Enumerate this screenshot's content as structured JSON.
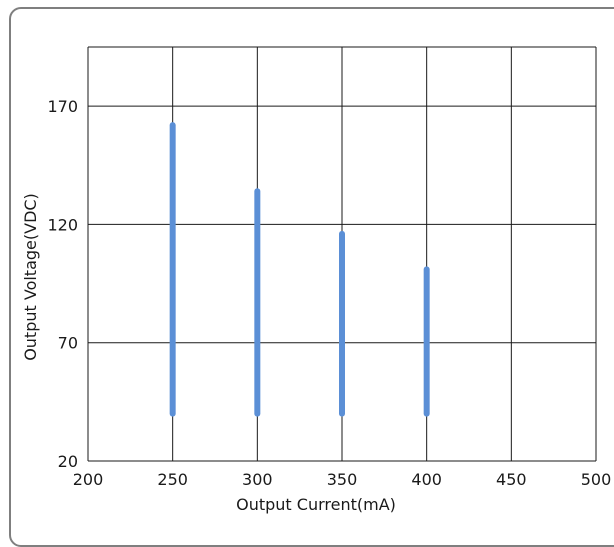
{
  "chart_data": {
    "type": "range-bar",
    "xlabel": "Output Current(mA)",
    "ylabel": "Output Voltage(VDC)",
    "xlim": [
      200,
      500
    ],
    "ylim": [
      20,
      195
    ],
    "x_ticks": [
      200,
      250,
      300,
      350,
      400,
      450,
      500
    ],
    "x_tick_labels": [
      "200",
      "250",
      "300",
      "350",
      "400",
      "450",
      "500"
    ],
    "y_ticks": [
      20,
      70,
      120,
      170
    ],
    "y_tick_labels": [
      "20",
      "70",
      "120",
      "170"
    ],
    "grid": true,
    "series": [
      {
        "color": "#5b8fd6",
        "ranges": [
          {
            "x": 250,
            "y_min": 40,
            "y_max": 162
          },
          {
            "x": 300,
            "y_min": 40,
            "y_max": 134
          },
          {
            "x": 350,
            "y_min": 40,
            "y_max": 116
          },
          {
            "x": 400,
            "y_min": 40,
            "y_max": 101
          }
        ]
      }
    ]
  }
}
